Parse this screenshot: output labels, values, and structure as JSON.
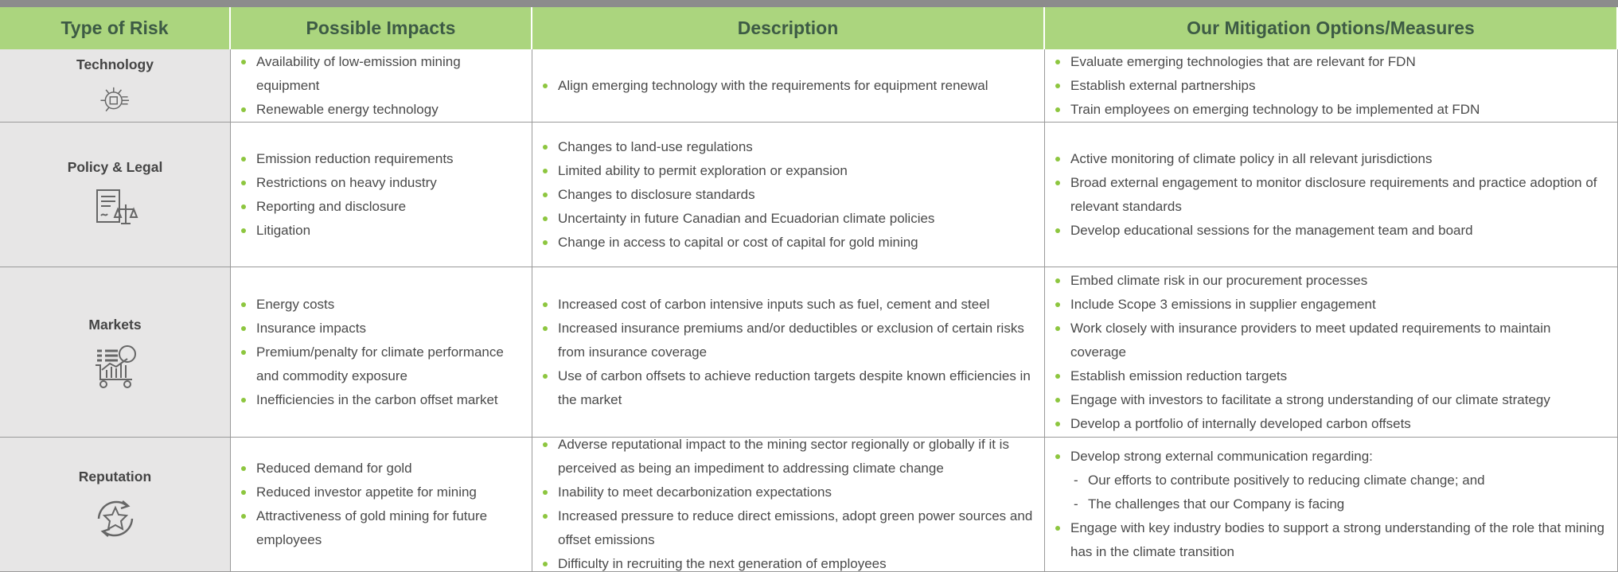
{
  "table": {
    "headers": [
      "Type of Risk",
      "Possible Impacts",
      "Description",
      "Our Mitigation Options/Measures"
    ],
    "rows": [
      {
        "risk": "Technology",
        "impacts": [
          "Availability of low-emission mining equipment",
          "Renewable energy technology"
        ],
        "description": [
          "Align emerging technology with the requirements for equipment renewal"
        ],
        "mitigation": [
          "Evaluate emerging technologies that are relevant for FDN",
          "Establish external partnerships",
          "Train employees on emerging technology to be implemented at FDN"
        ]
      },
      {
        "risk": "Policy & Legal",
        "impacts": [
          "Emission reduction requirements",
          "Restrictions on heavy industry",
          "Reporting and disclosure",
          "Litigation"
        ],
        "description": [
          "Changes to land-use regulations",
          "Limited ability to permit exploration or expansion",
          "Changes to disclosure standards",
          "Uncertainty in future Canadian and Ecuadorian climate policies",
          "Change in access to capital or cost of capital for gold mining"
        ],
        "mitigation": [
          "Active monitoring of climate policy in all relevant jurisdictions",
          "Broad external engagement to monitor disclosure requirements and practice adoption of relevant standards",
          "Develop educational sessions for the management team and board"
        ]
      },
      {
        "risk": "Markets",
        "impacts": [
          "Energy costs",
          "Insurance impacts",
          "Premium/penalty for climate performance and commodity exposure",
          "Inefficiencies in the carbon offset market"
        ],
        "description": [
          "Increased cost of carbon intensive inputs such as fuel, cement and steel",
          "Increased insurance premiums and/or deductibles or exclusion of certain risks from insurance coverage",
          "Use of carbon offsets to achieve reduction targets despite known efficiencies in the market"
        ],
        "mitigation": [
          "Embed climate risk in our procurement processes",
          "Include Scope 3 emissions in supplier engagement",
          "Work closely with insurance providers to meet updated requirements to maintain coverage",
          "Establish emission reduction targets",
          "Engage with investors to facilitate a strong understanding of our climate strategy",
          "Develop a portfolio of internally developed carbon offsets"
        ]
      },
      {
        "risk": "Reputation",
        "impacts": [
          "Reduced demand for gold",
          "Reduced investor appetite for mining",
          "Attractiveness of gold mining for future employees"
        ],
        "description": [
          "Adverse reputational impact to the mining sector regionally or globally if it is perceived as being an impediment to addressing climate change",
          "Inability to meet decarbonization expectations",
          "Increased pressure to reduce direct emissions, adopt green power sources and offset emissions",
          "Difficulty in recruiting the next generation of employees"
        ],
        "mitigation": [
          {
            "text": "Develop strong external communication regarding:",
            "sub": [
              "Our efforts to contribute positively to reducing climate change; and",
              "The challenges that our Company is facing"
            ]
          },
          "Engage with key industry bodies to support a strong understanding of the role that mining has in the climate transition"
        ]
      }
    ]
  }
}
